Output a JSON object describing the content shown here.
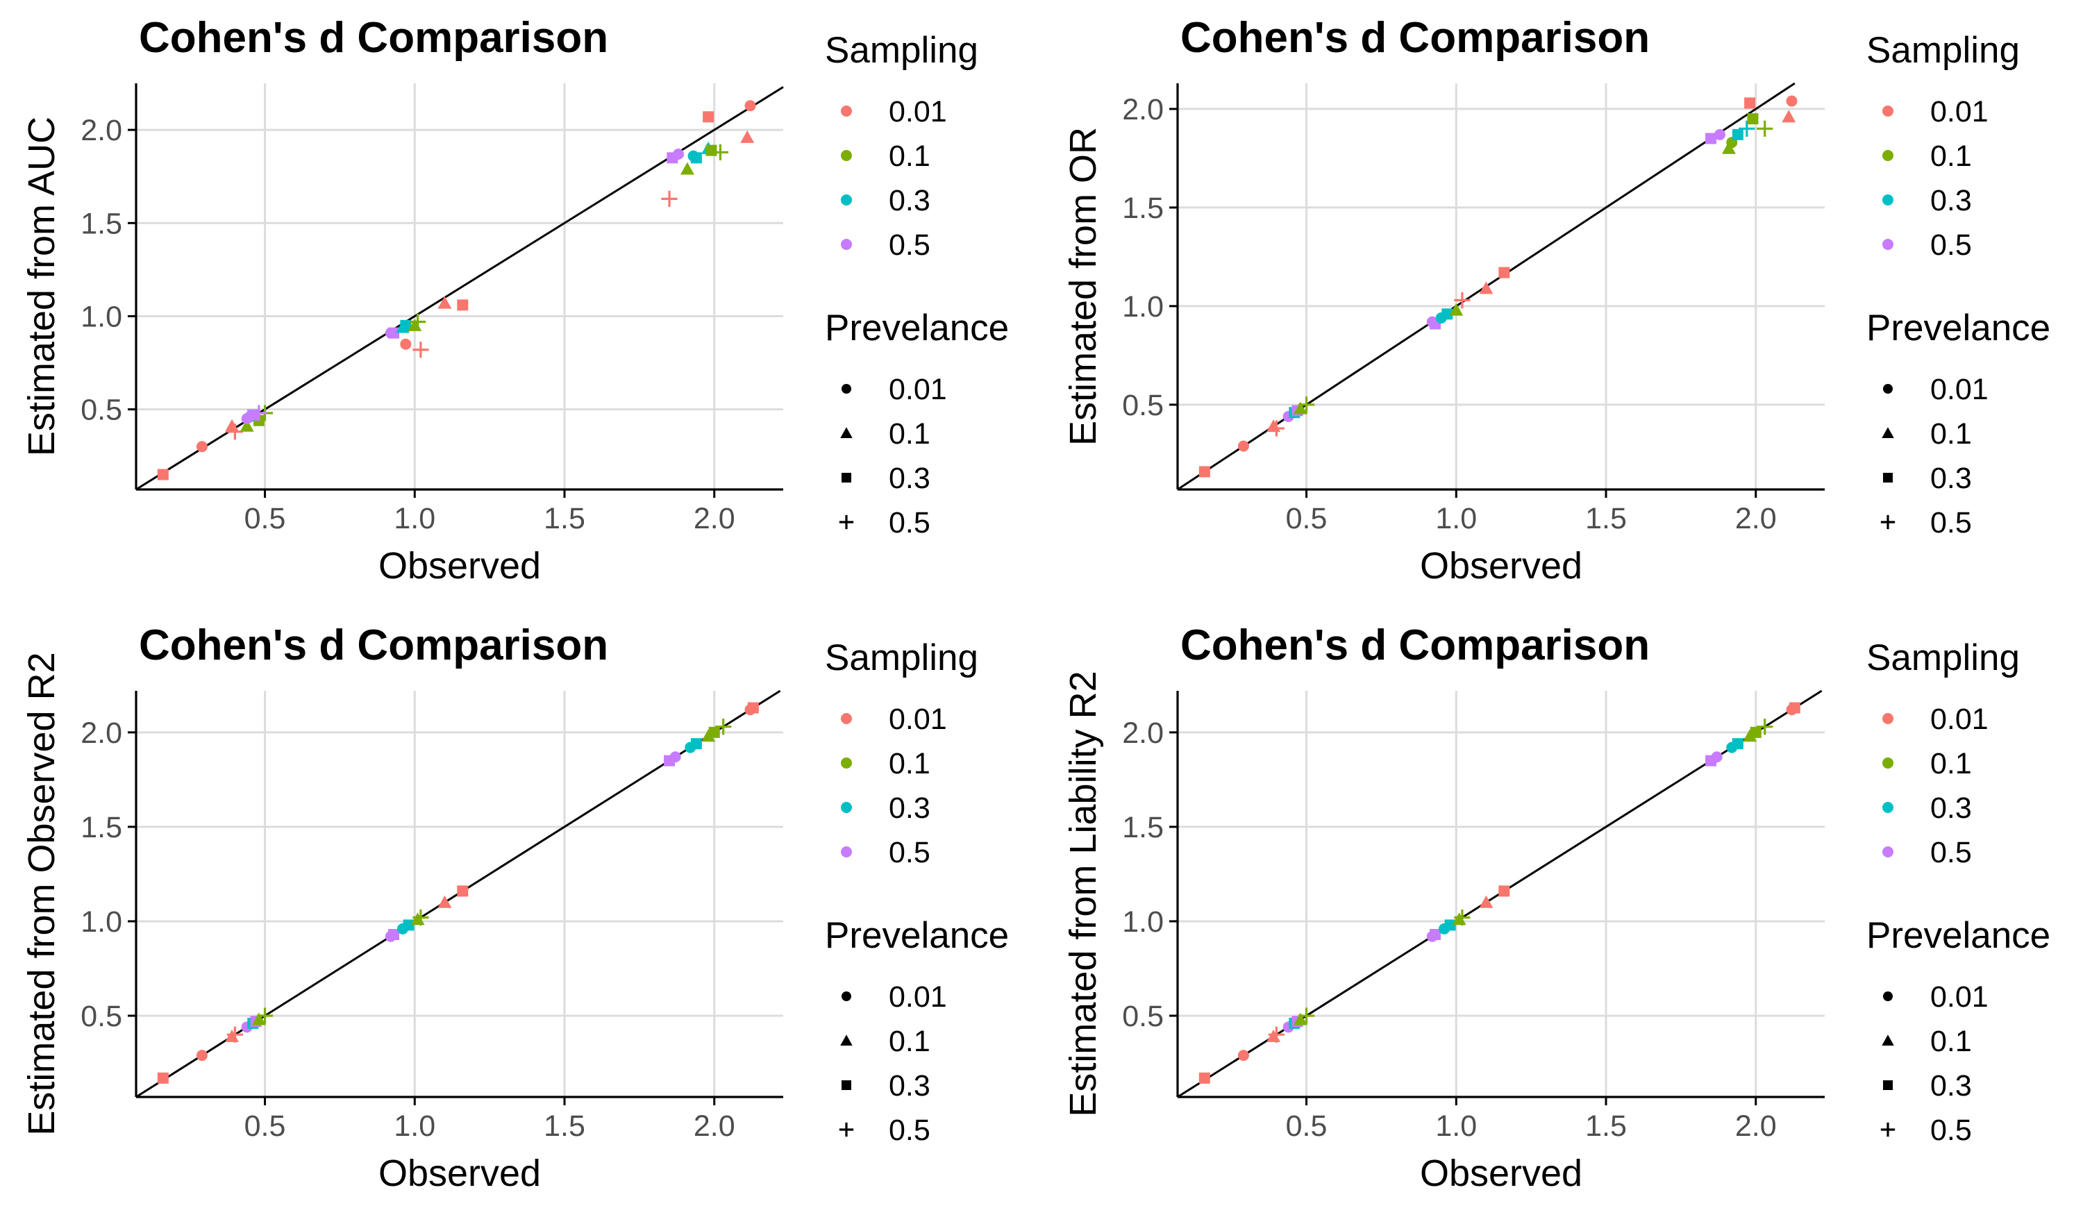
{
  "colors": {
    "sampling_0.01": "#F8766D",
    "sampling_0.1": "#7CAE00",
    "sampling_0.3": "#00BFC4",
    "sampling_0.5": "#C77CFF",
    "grid": "#dcdcdc",
    "axis": "#000000",
    "tick_text": "#4d4d4d"
  },
  "legend": {
    "sampling": {
      "title": "Sampling",
      "items": [
        "0.01",
        "0.1",
        "0.3",
        "0.5"
      ]
    },
    "prevalence": {
      "title": "Prevelance",
      "items": [
        "0.01",
        "0.1",
        "0.3",
        "0.5"
      ],
      "shapes": [
        "circle",
        "triangle",
        "square",
        "plus"
      ]
    }
  },
  "chart_data": [
    {
      "type": "scatter",
      "title": "Cohen's d Comparison",
      "xlabel": "Observed",
      "ylabel": "Estimated from AUC",
      "xlim": [
        0.07,
        2.23
      ],
      "ylim": [
        0.07,
        2.25
      ],
      "xticks": [
        "0.5",
        "1.0",
        "1.5",
        "2.0"
      ],
      "yticks": [
        "0.5",
        "1.0",
        "1.5",
        "2.0"
      ],
      "reference_line": "y = x",
      "grid": true,
      "legend_position": "right",
      "points": [
        {
          "x": 0.16,
          "y": 0.15,
          "sampling": "0.01",
          "prevalence": "0.3"
        },
        {
          "x": 0.29,
          "y": 0.3,
          "sampling": "0.01",
          "prevalence": "0.01"
        },
        {
          "x": 0.39,
          "y": 0.41,
          "sampling": "0.01",
          "prevalence": "0.1"
        },
        {
          "x": 0.4,
          "y": 0.38,
          "sampling": "0.01",
          "prevalence": "0.5"
        },
        {
          "x": 0.44,
          "y": 0.41,
          "sampling": "0.1",
          "prevalence": "0.1"
        },
        {
          "x": 0.48,
          "y": 0.44,
          "sampling": "0.1",
          "prevalence": "0.3"
        },
        {
          "x": 0.5,
          "y": 0.48,
          "sampling": "0.1",
          "prevalence": "0.5"
        },
        {
          "x": 0.45,
          "y": 0.46,
          "sampling": "0.3",
          "prevalence": "0.01"
        },
        {
          "x": 0.46,
          "y": 0.47,
          "sampling": "0.3",
          "prevalence": "0.3"
        },
        {
          "x": 0.44,
          "y": 0.45,
          "sampling": "0.5",
          "prevalence": "0.01"
        },
        {
          "x": 0.46,
          "y": 0.47,
          "sampling": "0.5",
          "prevalence": "0.3"
        },
        {
          "x": 0.48,
          "y": 0.48,
          "sampling": "0.5",
          "prevalence": "0.5"
        },
        {
          "x": 0.92,
          "y": 0.91,
          "sampling": "0.5",
          "prevalence": "0.01"
        },
        {
          "x": 0.93,
          "y": 0.91,
          "sampling": "0.5",
          "prevalence": "0.3"
        },
        {
          "x": 0.96,
          "y": 0.94,
          "sampling": "0.3",
          "prevalence": "0.1"
        },
        {
          "x": 0.97,
          "y": 0.95,
          "sampling": "0.3",
          "prevalence": "0.3"
        },
        {
          "x": 1.0,
          "y": 0.95,
          "sampling": "0.1",
          "prevalence": "0.1"
        },
        {
          "x": 1.01,
          "y": 0.97,
          "sampling": "0.1",
          "prevalence": "0.5"
        },
        {
          "x": 0.97,
          "y": 0.85,
          "sampling": "0.01",
          "prevalence": "0.01"
        },
        {
          "x": 1.02,
          "y": 0.82,
          "sampling": "0.01",
          "prevalence": "0.5"
        },
        {
          "x": 1.1,
          "y": 1.07,
          "sampling": "0.01",
          "prevalence": "0.1"
        },
        {
          "x": 1.16,
          "y": 1.06,
          "sampling": "0.01",
          "prevalence": "0.3"
        },
        {
          "x": 1.85,
          "y": 1.63,
          "sampling": "0.01",
          "prevalence": "0.5"
        },
        {
          "x": 1.86,
          "y": 1.85,
          "sampling": "0.5",
          "prevalence": "0.3"
        },
        {
          "x": 1.88,
          "y": 1.87,
          "sampling": "0.5",
          "prevalence": "0.01"
        },
        {
          "x": 1.91,
          "y": 1.79,
          "sampling": "0.1",
          "prevalence": "0.1"
        },
        {
          "x": 1.93,
          "y": 1.86,
          "sampling": "0.3",
          "prevalence": "0.01"
        },
        {
          "x": 1.94,
          "y": 1.85,
          "sampling": "0.3",
          "prevalence": "0.3"
        },
        {
          "x": 1.98,
          "y": 1.9,
          "sampling": "0.3",
          "prevalence": "0.1"
        },
        {
          "x": 1.99,
          "y": 1.89,
          "sampling": "0.1",
          "prevalence": "0.3"
        },
        {
          "x": 2.02,
          "y": 1.88,
          "sampling": "0.1",
          "prevalence": "0.5"
        },
        {
          "x": 1.98,
          "y": 2.07,
          "sampling": "0.01",
          "prevalence": "0.3"
        },
        {
          "x": 2.11,
          "y": 1.96,
          "sampling": "0.01",
          "prevalence": "0.1"
        },
        {
          "x": 2.12,
          "y": 2.13,
          "sampling": "0.01",
          "prevalence": "0.01"
        }
      ]
    },
    {
      "type": "scatter",
      "title": "Cohen's d Comparison",
      "xlabel": "Observed",
      "ylabel": "Estimated from OR",
      "xlim": [
        0.07,
        2.23
      ],
      "ylim": [
        0.07,
        2.13
      ],
      "xticks": [
        "0.5",
        "1.0",
        "1.5",
        "2.0"
      ],
      "yticks": [
        "0.5",
        "1.0",
        "1.5",
        "2.0"
      ],
      "reference_line": "y = x",
      "grid": true,
      "legend_position": "right",
      "points": [
        {
          "x": 0.16,
          "y": 0.16,
          "sampling": "0.01",
          "prevalence": "0.3"
        },
        {
          "x": 0.29,
          "y": 0.29,
          "sampling": "0.01",
          "prevalence": "0.01"
        },
        {
          "x": 0.39,
          "y": 0.39,
          "sampling": "0.01",
          "prevalence": "0.1"
        },
        {
          "x": 0.4,
          "y": 0.38,
          "sampling": "0.01",
          "prevalence": "0.5"
        },
        {
          "x": 0.44,
          "y": 0.44,
          "sampling": "0.5",
          "prevalence": "0.01"
        },
        {
          "x": 0.46,
          "y": 0.46,
          "sampling": "0.3",
          "prevalence": "0.3"
        },
        {
          "x": 0.47,
          "y": 0.47,
          "sampling": "0.5",
          "prevalence": "0.3"
        },
        {
          "x": 0.48,
          "y": 0.48,
          "sampling": "0.1",
          "prevalence": "0.1"
        },
        {
          "x": 0.5,
          "y": 0.5,
          "sampling": "0.1",
          "prevalence": "0.5"
        },
        {
          "x": 0.92,
          "y": 0.92,
          "sampling": "0.5",
          "prevalence": "0.01"
        },
        {
          "x": 0.93,
          "y": 0.91,
          "sampling": "0.5",
          "prevalence": "0.3"
        },
        {
          "x": 0.95,
          "y": 0.94,
          "sampling": "0.3",
          "prevalence": "0.01"
        },
        {
          "x": 0.97,
          "y": 0.96,
          "sampling": "0.3",
          "prevalence": "0.3"
        },
        {
          "x": 1.0,
          "y": 0.98,
          "sampling": "0.1",
          "prevalence": "0.1"
        },
        {
          "x": 1.02,
          "y": 1.03,
          "sampling": "0.01",
          "prevalence": "0.5"
        },
        {
          "x": 1.1,
          "y": 1.09,
          "sampling": "0.01",
          "prevalence": "0.1"
        },
        {
          "x": 1.16,
          "y": 1.17,
          "sampling": "0.01",
          "prevalence": "0.3"
        },
        {
          "x": 1.85,
          "y": 1.85,
          "sampling": "0.5",
          "prevalence": "0.3"
        },
        {
          "x": 1.88,
          "y": 1.87,
          "sampling": "0.5",
          "prevalence": "0.01"
        },
        {
          "x": 1.91,
          "y": 1.8,
          "sampling": "0.1",
          "prevalence": "0.1"
        },
        {
          "x": 1.92,
          "y": 1.83,
          "sampling": "0.1",
          "prevalence": "0.01"
        },
        {
          "x": 1.94,
          "y": 1.87,
          "sampling": "0.3",
          "prevalence": "0.3"
        },
        {
          "x": 1.97,
          "y": 1.9,
          "sampling": "0.3",
          "prevalence": "0.5"
        },
        {
          "x": 1.99,
          "y": 1.95,
          "sampling": "0.1",
          "prevalence": "0.3"
        },
        {
          "x": 2.03,
          "y": 1.9,
          "sampling": "0.1",
          "prevalence": "0.5"
        },
        {
          "x": 1.98,
          "y": 2.03,
          "sampling": "0.01",
          "prevalence": "0.3"
        },
        {
          "x": 2.11,
          "y": 1.96,
          "sampling": "0.01",
          "prevalence": "0.1"
        },
        {
          "x": 2.12,
          "y": 2.04,
          "sampling": "0.01",
          "prevalence": "0.01"
        }
      ]
    },
    {
      "type": "scatter",
      "title": "Cohen's d Comparison",
      "xlabel": "Observed",
      "ylabel": "Estimated from Observed R2",
      "xlim": [
        0.07,
        2.23
      ],
      "ylim": [
        0.07,
        2.22
      ],
      "xticks": [
        "0.5",
        "1.0",
        "1.5",
        "2.0"
      ],
      "yticks": [
        "0.5",
        "1.0",
        "1.5",
        "2.0"
      ],
      "reference_line": "y = x",
      "grid": true,
      "legend_position": "right",
      "points": [
        {
          "x": 0.16,
          "y": 0.17,
          "sampling": "0.01",
          "prevalence": "0.3"
        },
        {
          "x": 0.29,
          "y": 0.29,
          "sampling": "0.01",
          "prevalence": "0.01"
        },
        {
          "x": 0.39,
          "y": 0.39,
          "sampling": "0.01",
          "prevalence": "0.1"
        },
        {
          "x": 0.4,
          "y": 0.4,
          "sampling": "0.01",
          "prevalence": "0.5"
        },
        {
          "x": 0.44,
          "y": 0.44,
          "sampling": "0.5",
          "prevalence": "0.01"
        },
        {
          "x": 0.46,
          "y": 0.46,
          "sampling": "0.3",
          "prevalence": "0.3"
        },
        {
          "x": 0.47,
          "y": 0.47,
          "sampling": "0.5",
          "prevalence": "0.3"
        },
        {
          "x": 0.48,
          "y": 0.48,
          "sampling": "0.1",
          "prevalence": "0.1"
        },
        {
          "x": 0.5,
          "y": 0.5,
          "sampling": "0.1",
          "prevalence": "0.5"
        },
        {
          "x": 0.92,
          "y": 0.92,
          "sampling": "0.5",
          "prevalence": "0.01"
        },
        {
          "x": 0.93,
          "y": 0.93,
          "sampling": "0.5",
          "prevalence": "0.3"
        },
        {
          "x": 0.96,
          "y": 0.96,
          "sampling": "0.3",
          "prevalence": "0.01"
        },
        {
          "x": 0.98,
          "y": 0.98,
          "sampling": "0.3",
          "prevalence": "0.3"
        },
        {
          "x": 1.01,
          "y": 1.01,
          "sampling": "0.1",
          "prevalence": "0.1"
        },
        {
          "x": 1.02,
          "y": 1.02,
          "sampling": "0.1",
          "prevalence": "0.5"
        },
        {
          "x": 1.1,
          "y": 1.1,
          "sampling": "0.01",
          "prevalence": "0.1"
        },
        {
          "x": 1.16,
          "y": 1.16,
          "sampling": "0.01",
          "prevalence": "0.3"
        },
        {
          "x": 1.85,
          "y": 1.85,
          "sampling": "0.5",
          "prevalence": "0.3"
        },
        {
          "x": 1.87,
          "y": 1.87,
          "sampling": "0.5",
          "prevalence": "0.01"
        },
        {
          "x": 1.92,
          "y": 1.92,
          "sampling": "0.3",
          "prevalence": "0.01"
        },
        {
          "x": 1.94,
          "y": 1.94,
          "sampling": "0.3",
          "prevalence": "0.3"
        },
        {
          "x": 1.98,
          "y": 1.98,
          "sampling": "0.1",
          "prevalence": "0.1"
        },
        {
          "x": 2.0,
          "y": 2.0,
          "sampling": "0.1",
          "prevalence": "0.3"
        },
        {
          "x": 2.03,
          "y": 2.03,
          "sampling": "0.1",
          "prevalence": "0.5"
        },
        {
          "x": 2.12,
          "y": 2.12,
          "sampling": "0.01",
          "prevalence": "0.01"
        },
        {
          "x": 2.13,
          "y": 2.13,
          "sampling": "0.01",
          "prevalence": "0.3"
        }
      ]
    },
    {
      "type": "scatter",
      "title": "Cohen's d Comparison",
      "xlabel": "Observed",
      "ylabel": "Estimated from Liability R2",
      "xlim": [
        0.07,
        2.23
      ],
      "ylim": [
        0.07,
        2.22
      ],
      "xticks": [
        "0.5",
        "1.0",
        "1.5",
        "2.0"
      ],
      "yticks": [
        "0.5",
        "1.0",
        "1.5",
        "2.0"
      ],
      "reference_line": "y = x",
      "grid": true,
      "legend_position": "right",
      "points": [
        {
          "x": 0.16,
          "y": 0.17,
          "sampling": "0.01",
          "prevalence": "0.3"
        },
        {
          "x": 0.29,
          "y": 0.29,
          "sampling": "0.01",
          "prevalence": "0.01"
        },
        {
          "x": 0.39,
          "y": 0.39,
          "sampling": "0.01",
          "prevalence": "0.1"
        },
        {
          "x": 0.4,
          "y": 0.4,
          "sampling": "0.01",
          "prevalence": "0.5"
        },
        {
          "x": 0.44,
          "y": 0.44,
          "sampling": "0.5",
          "prevalence": "0.01"
        },
        {
          "x": 0.46,
          "y": 0.46,
          "sampling": "0.3",
          "prevalence": "0.3"
        },
        {
          "x": 0.47,
          "y": 0.47,
          "sampling": "0.5",
          "prevalence": "0.3"
        },
        {
          "x": 0.48,
          "y": 0.48,
          "sampling": "0.1",
          "prevalence": "0.1"
        },
        {
          "x": 0.5,
          "y": 0.5,
          "sampling": "0.1",
          "prevalence": "0.5"
        },
        {
          "x": 0.92,
          "y": 0.92,
          "sampling": "0.5",
          "prevalence": "0.01"
        },
        {
          "x": 0.93,
          "y": 0.93,
          "sampling": "0.5",
          "prevalence": "0.3"
        },
        {
          "x": 0.96,
          "y": 0.96,
          "sampling": "0.3",
          "prevalence": "0.01"
        },
        {
          "x": 0.98,
          "y": 0.98,
          "sampling": "0.3",
          "prevalence": "0.3"
        },
        {
          "x": 1.01,
          "y": 1.01,
          "sampling": "0.1",
          "prevalence": "0.1"
        },
        {
          "x": 1.02,
          "y": 1.02,
          "sampling": "0.1",
          "prevalence": "0.5"
        },
        {
          "x": 1.1,
          "y": 1.1,
          "sampling": "0.01",
          "prevalence": "0.1"
        },
        {
          "x": 1.16,
          "y": 1.16,
          "sampling": "0.01",
          "prevalence": "0.3"
        },
        {
          "x": 1.85,
          "y": 1.85,
          "sampling": "0.5",
          "prevalence": "0.3"
        },
        {
          "x": 1.87,
          "y": 1.87,
          "sampling": "0.5",
          "prevalence": "0.01"
        },
        {
          "x": 1.92,
          "y": 1.92,
          "sampling": "0.3",
          "prevalence": "0.01"
        },
        {
          "x": 1.94,
          "y": 1.94,
          "sampling": "0.3",
          "prevalence": "0.3"
        },
        {
          "x": 1.98,
          "y": 1.98,
          "sampling": "0.1",
          "prevalence": "0.1"
        },
        {
          "x": 2.0,
          "y": 2.0,
          "sampling": "0.1",
          "prevalence": "0.3"
        },
        {
          "x": 2.03,
          "y": 2.03,
          "sampling": "0.1",
          "prevalence": "0.5"
        },
        {
          "x": 2.12,
          "y": 2.12,
          "sampling": "0.01",
          "prevalence": "0.01"
        },
        {
          "x": 2.13,
          "y": 2.13,
          "sampling": "0.01",
          "prevalence": "0.3"
        }
      ]
    }
  ]
}
